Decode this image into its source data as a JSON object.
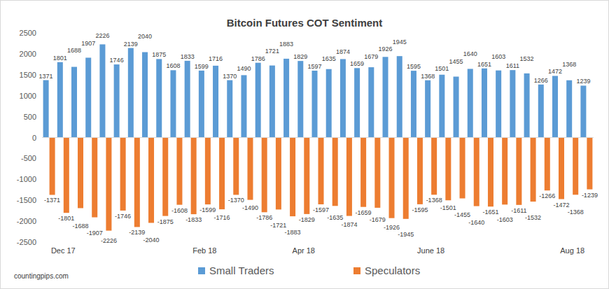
{
  "chart_data": {
    "type": "bar",
    "title": "Bitcoin Futures COT Sentiment",
    "categories": [
      null,
      "Dec 17",
      null,
      null,
      null,
      null,
      null,
      null,
      null,
      null,
      null,
      "Feb 18",
      null,
      null,
      null,
      null,
      null,
      null,
      "Apr 18",
      null,
      null,
      null,
      null,
      null,
      null,
      null,
      null,
      "June 18",
      null,
      null,
      null,
      null,
      null,
      null,
      null,
      null,
      null,
      "Aug 18",
      null
    ],
    "series": [
      {
        "name": "Small Traders",
        "color": "#5b9bd5",
        "values": [
          1371,
          1801,
          1688,
          1907,
          2226,
          1746,
          2139,
          2040,
          1875,
          1608,
          1833,
          1599,
          1716,
          1370,
          1490,
          1786,
          1721,
          1883,
          1829,
          1597,
          1635,
          1874,
          1659,
          1679,
          1926,
          1945,
          1595,
          1368,
          1501,
          1455,
          1640,
          1651,
          1603,
          1611,
          1532,
          1266,
          1472,
          1368,
          1239
        ]
      },
      {
        "name": "Speculators",
        "color": "#ed7d31",
        "values": [
          -1371,
          -1801,
          -1688,
          -1907,
          -2226,
          -1746,
          -2139,
          -2040,
          -1875,
          -1608,
          -1833,
          -1599,
          -1716,
          -1370,
          -1490,
          -1786,
          -1721,
          -1883,
          -1829,
          -1597,
          -1635,
          -1874,
          -1659,
          -1679,
          -1926,
          -1945,
          -1595,
          -1368,
          -1501,
          -1455,
          -1640,
          -1651,
          -1603,
          -1611,
          -1532,
          -1266,
          -1472,
          -1368,
          -1239
        ]
      }
    ],
    "ylim": [
      -2500,
      2500
    ],
    "yticks": [
      -2500,
      -2000,
      -1500,
      -1000,
      -500,
      0,
      500,
      1000,
      1500,
      2000,
      2500
    ],
    "grid": false,
    "legend": "bottom",
    "data_labels": true,
    "source": "countingpips.com"
  }
}
